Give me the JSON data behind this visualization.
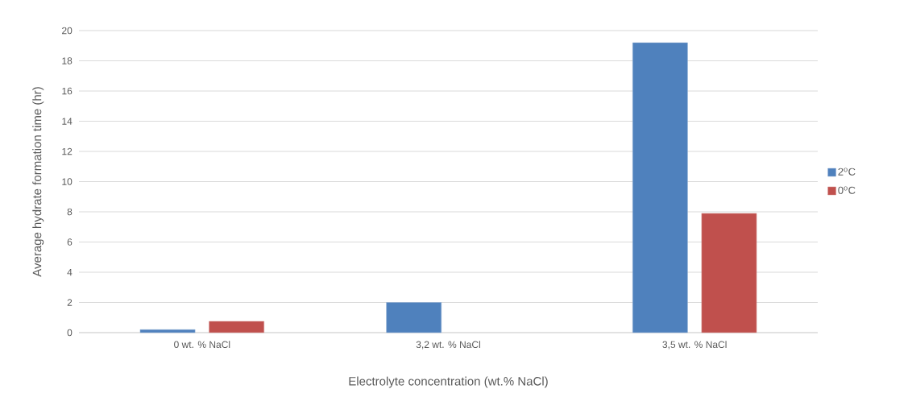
{
  "chart_data": {
    "type": "bar",
    "xlabel": "Electrolyte concentration (wt.% NaCl)",
    "ylabel": "Average hydrate formation time (hr)",
    "categories": [
      "0 wt. % NaCl",
      "3,2 wt. % NaCl",
      "3,5 wt. % NaCl"
    ],
    "series": [
      {
        "name": "2$^{o}$C",
        "color": "#4f81bd",
        "values": [
          0.2,
          2.0,
          19.2
        ]
      },
      {
        "name": "0$^{o}$C",
        "color": "#c0504d",
        "values": [
          0.75,
          null,
          7.9
        ]
      }
    ],
    "ylim": [
      0,
      20
    ],
    "yticks": [
      0,
      2,
      4,
      6,
      8,
      10,
      12,
      14,
      16,
      18,
      20
    ],
    "grid": "y",
    "legend": "right"
  }
}
